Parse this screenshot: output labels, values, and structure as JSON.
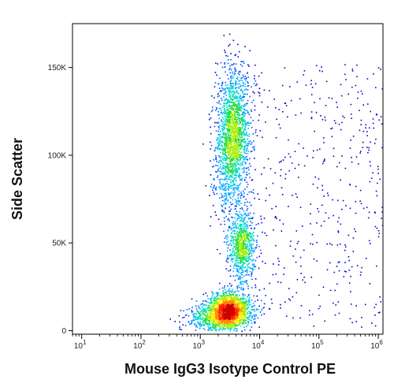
{
  "chart_data": {
    "type": "scatter",
    "subtype": "flow-cytometry-density-plot",
    "title": "",
    "xlabel": "Mouse IgG3 Isotype Control PE",
    "ylabel": "Side Scatter",
    "x_scale": "log",
    "y_scale": "linear",
    "xlim": [
      7,
      1200000
    ],
    "ylim": [
      -2000,
      175000
    ],
    "grid": false,
    "legend": "none",
    "x_ticks": [
      {
        "value": 10,
        "base": "10",
        "exp": "1"
      },
      {
        "value": 100,
        "base": "10",
        "exp": "2"
      },
      {
        "value": 1000,
        "base": "10",
        "exp": "3"
      },
      {
        "value": 10000,
        "base": "10",
        "exp": "4"
      },
      {
        "value": 100000,
        "base": "10",
        "exp": "5"
      },
      {
        "value": 1000000,
        "base": "10",
        "exp": "6"
      }
    ],
    "y_ticks": [
      {
        "value": 0,
        "label": "0"
      },
      {
        "value": 50000,
        "label": "50K"
      },
      {
        "value": 100000,
        "label": "100K"
      },
      {
        "value": 150000,
        "label": "150K"
      }
    ],
    "density_colormap": [
      "#0000cc",
      "#0055ff",
      "#00aaff",
      "#00ddcc",
      "#22dd44",
      "#aaee00",
      "#ffee00",
      "#ff8800",
      "#ff2200",
      "#cc0000"
    ],
    "populations": [
      {
        "name": "",
        "x_center": 3000,
        "x_log_sd": 0.18,
        "y_center": 12000,
        "y_sd": 5000,
        "weight": 0.3
      },
      {
        "name": "",
        "x_center": 3400,
        "x_log_sd": 0.14,
        "y_center": 110000,
        "y_sd": 20000,
        "weight": 0.36
      },
      {
        "name": "",
        "x_center": 5000,
        "x_log_sd": 0.11,
        "y_center": 48000,
        "y_sd": 10000,
        "weight": 0.14
      },
      {
        "name": "",
        "x_center": 1800,
        "x_log_sd": 0.25,
        "y_center": 7000,
        "y_sd": 4000,
        "weight": 0.1
      },
      {
        "name": "",
        "x_center": 40000,
        "x_log_sd": 0.9,
        "y_center": 60000,
        "y_sd": 35000,
        "weight": 0.1
      }
    ]
  }
}
